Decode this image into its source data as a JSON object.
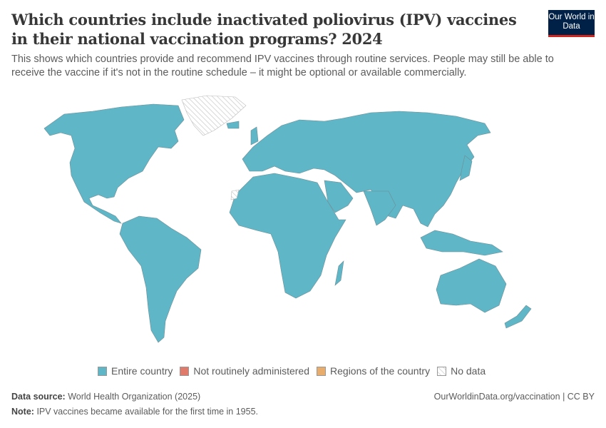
{
  "header": {
    "title": "Which countries include inactivated poliovirus (IPV) vaccines in their national vaccination programs? 2024",
    "subtitle": "This shows which countries provide and recommend IPV vaccines through routine services. People may still be able to receive the vaccine if it's not in the routine schedule – it might be optional or available commercially.",
    "logo_text": "Our World in Data"
  },
  "chart_data": {
    "type": "choropleth-map",
    "year": "2024",
    "categories": [
      {
        "label": "Entire country",
        "color": "#5FB6C7"
      },
      {
        "label": "Not routinely administered",
        "color": "#E07B6C"
      },
      {
        "label": "Regions of the country",
        "color": "#E8AD6D"
      },
      {
        "label": "No data",
        "color": "hatched"
      }
    ],
    "regions": {
      "North America": "Entire country",
      "South America": "Entire country",
      "Europe": "Entire country",
      "Asia": "Entire country",
      "Africa": "Entire country",
      "Oceania": "Entire country",
      "Greenland": "No data",
      "Western Sahara": "No data"
    }
  },
  "footer": {
    "source_label": "Data source:",
    "source": "World Health Organization (2025)",
    "note_label": "Note:",
    "note": "IPV vaccines became available for the first time in 1955.",
    "link": "OurWorldinData.org/vaccination | CC BY"
  }
}
